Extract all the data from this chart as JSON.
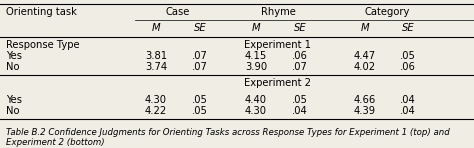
{
  "title_row": "Orienting task",
  "col_groups": [
    "Case",
    "Rhyme",
    "Category"
  ],
  "sub_cols": [
    "M",
    "SE"
  ],
  "section_label1": "Response Type",
  "experiment1_label": "Experiment 1",
  "experiment2_label": "Experiment 2",
  "rows1": [
    {
      "label": "Yes",
      "values": [
        "3.81",
        ".07",
        "4.15",
        ".06",
        "4.47",
        ".05"
      ]
    },
    {
      "label": "No",
      "values": [
        "3.74",
        ".07",
        "3.90",
        ".07",
        "4.02",
        ".06"
      ]
    }
  ],
  "rows2": [
    {
      "label": "Yes",
      "values": [
        "4.30",
        ".05",
        "4.40",
        ".05",
        "4.66",
        ".04"
      ]
    },
    {
      "label": "No",
      "values": [
        "4.22",
        ".05",
        "4.30",
        ".04",
        "4.39",
        ".04"
      ]
    }
  ],
  "caption": "Table B.2 Confidence Judgments for Orienting Tasks across Response Types for Experiment 1 (top) and\nExperiment 2 (bottom)",
  "bg_color": "#f0ede4",
  "font_size": 7.2,
  "caption_font_size": 6.2
}
